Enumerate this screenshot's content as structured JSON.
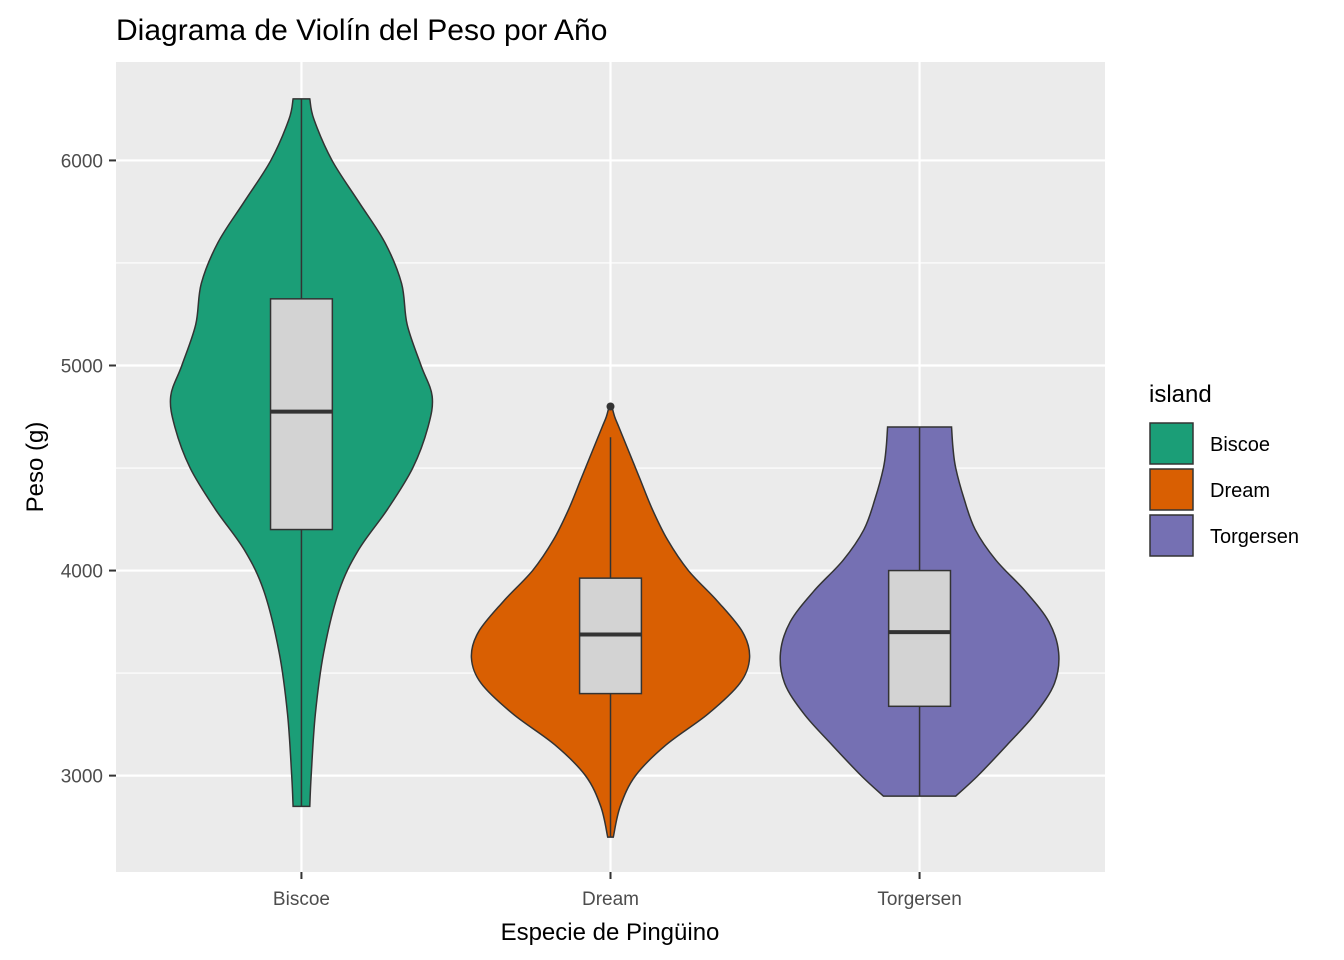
{
  "chart_data": {
    "type": "violin",
    "title": "Diagrama de Violín del Peso por Año",
    "xlabel": "Especie de Pingüino",
    "ylabel": "Peso (g)",
    "categories": [
      "Biscoe",
      "Dream",
      "Torgersen"
    ],
    "ylim": [
      2530,
      6480
    ],
    "yticks": [
      3000,
      4000,
      5000,
      6000
    ],
    "yticks_labels": [
      "3000",
      "4000",
      "5000",
      "6000"
    ],
    "grid": true,
    "legend": {
      "title": "island",
      "position": "right",
      "entries": [
        "Biscoe",
        "Dream",
        "Torgersen"
      ]
    },
    "colors": {
      "Biscoe": "#1b9e77",
      "Dream": "#d95f02",
      "Torgersen": "#7570b3",
      "box_fill": "#d3d3d3",
      "panel_background": "#ebebeb",
      "grid": "#ffffff",
      "outline": "#333333"
    },
    "series": [
      {
        "name": "Biscoe",
        "min": 2850,
        "max": 6300,
        "box": {
          "q1": 4200,
          "median": 4775,
          "q3": 5325,
          "whisker_low": 2850,
          "whisker_high": 6300
        },
        "outliers": [],
        "density": [
          [
            2850,
            0.06
          ],
          [
            3000,
            0.07
          ],
          [
            3300,
            0.1
          ],
          [
            3600,
            0.16
          ],
          [
            3900,
            0.27
          ],
          [
            4100,
            0.41
          ],
          [
            4300,
            0.62
          ],
          [
            4500,
            0.8
          ],
          [
            4700,
            0.91
          ],
          [
            4850,
            0.94
          ],
          [
            5000,
            0.86
          ],
          [
            5200,
            0.76
          ],
          [
            5400,
            0.72
          ],
          [
            5600,
            0.6
          ],
          [
            5800,
            0.41
          ],
          [
            6000,
            0.22
          ],
          [
            6200,
            0.09
          ],
          [
            6300,
            0.06
          ]
        ]
      },
      {
        "name": "Dream",
        "min": 2700,
        "max": 4800,
        "box": {
          "q1": 3400,
          "median": 3688,
          "q3": 3963,
          "whisker_low": 2700,
          "whisker_high": 4650
        },
        "outliers": [
          4800
        ],
        "density": [
          [
            2700,
            0.02
          ],
          [
            2850,
            0.07
          ],
          [
            3000,
            0.18
          ],
          [
            3150,
            0.4
          ],
          [
            3300,
            0.7
          ],
          [
            3450,
            0.93
          ],
          [
            3575,
            1.0
          ],
          [
            3700,
            0.95
          ],
          [
            3850,
            0.77
          ],
          [
            4000,
            0.56
          ],
          [
            4150,
            0.41
          ],
          [
            4300,
            0.3
          ],
          [
            4450,
            0.21
          ],
          [
            4600,
            0.12
          ],
          [
            4700,
            0.06
          ],
          [
            4750,
            0.03
          ],
          [
            4800,
            0.01
          ]
        ]
      },
      {
        "name": "Torgersen",
        "min": 2900,
        "max": 4700,
        "box": {
          "q1": 3338,
          "median": 3700,
          "q3": 4000,
          "whisker_low": 2900,
          "whisker_high": 4700
        },
        "outliers": [],
        "density": [
          [
            2900,
            0.26
          ],
          [
            3000,
            0.42
          ],
          [
            3150,
            0.63
          ],
          [
            3300,
            0.83
          ],
          [
            3450,
            0.97
          ],
          [
            3600,
            1.0
          ],
          [
            3750,
            0.93
          ],
          [
            3900,
            0.76
          ],
          [
            4050,
            0.55
          ],
          [
            4200,
            0.4
          ],
          [
            4350,
            0.32
          ],
          [
            4500,
            0.26
          ],
          [
            4600,
            0.24
          ],
          [
            4700,
            0.23
          ]
        ]
      }
    ]
  }
}
